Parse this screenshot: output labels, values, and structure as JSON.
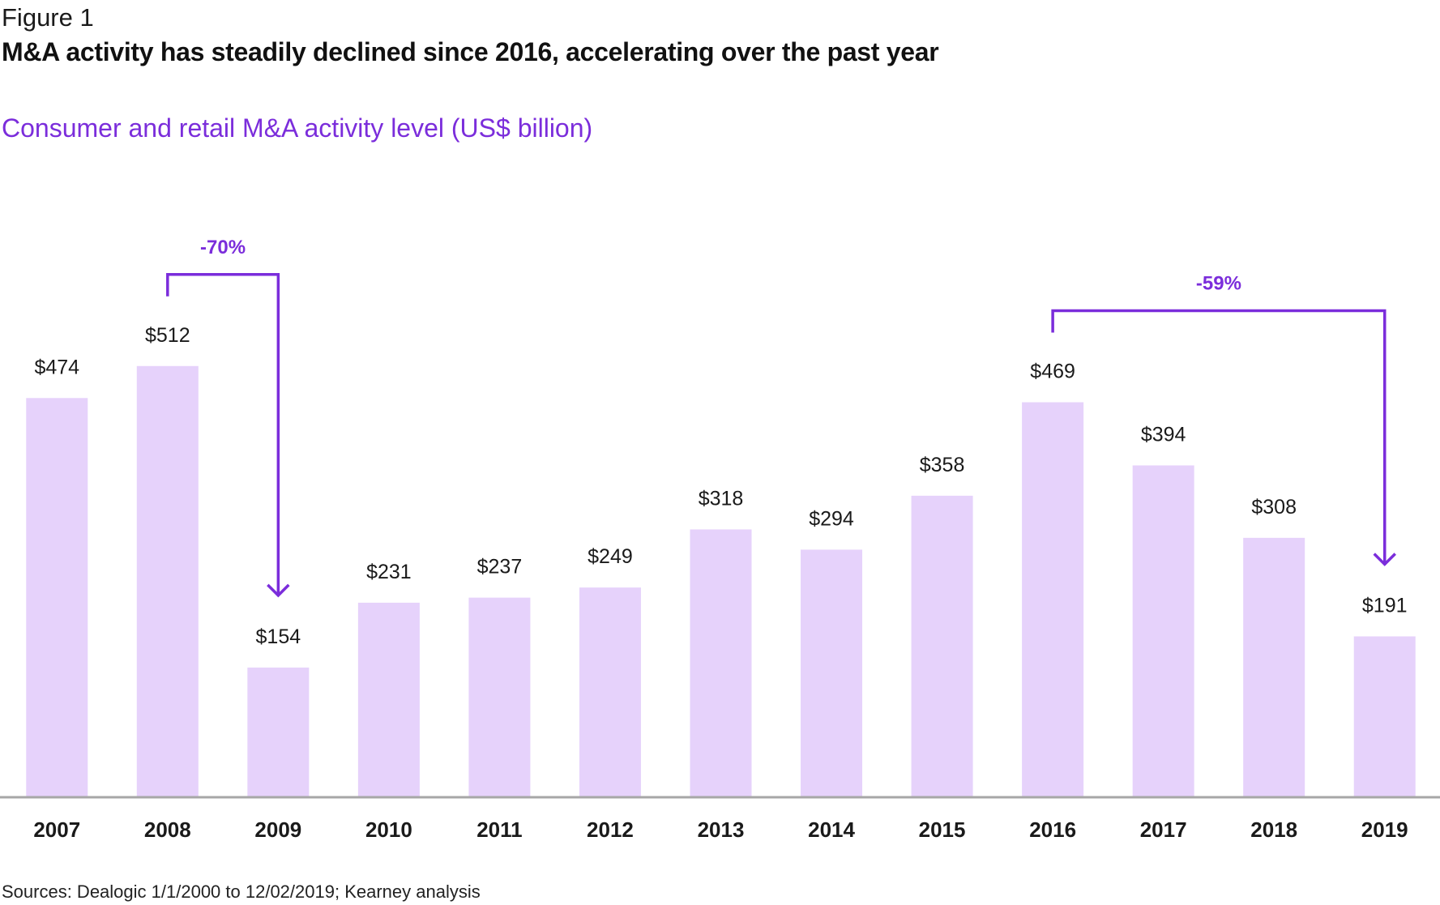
{
  "figure": {
    "label": "Figure 1",
    "title": "M&A activity has steadily declined since 2016, accelerating over the past year",
    "sources": "Sources: Dealogic 1/1/2000 to 12/02/2019; Kearney analysis"
  },
  "colors": {
    "bar": "#e6d2fb",
    "accent": "#7b2ddb",
    "axis": "#a7a7a7"
  },
  "chart_data": {
    "type": "bar",
    "title": "Consumer and retail M&A activity level  (US$ billion)",
    "xlabel": "",
    "ylabel": "",
    "ylim": [
      0,
      530
    ],
    "grid": false,
    "categories": [
      "2007",
      "2008",
      "2009",
      "2010",
      "2011",
      "2012",
      "2013",
      "2014",
      "2015",
      "2016",
      "2017",
      "2018",
      "2019"
    ],
    "values": [
      474,
      512,
      154,
      231,
      237,
      249,
      318,
      294,
      358,
      469,
      394,
      308,
      191
    ],
    "data_labels": [
      "$474",
      "$512",
      "$154",
      "$231",
      "$237",
      "$249",
      "$318",
      "$294",
      "$358",
      "$469",
      "$394",
      "$308",
      "$191"
    ],
    "annotations": [
      {
        "label": "-70%",
        "from": "2008",
        "to": "2009"
      },
      {
        "label": "-59%",
        "from": "2016",
        "to": "2019"
      }
    ]
  }
}
